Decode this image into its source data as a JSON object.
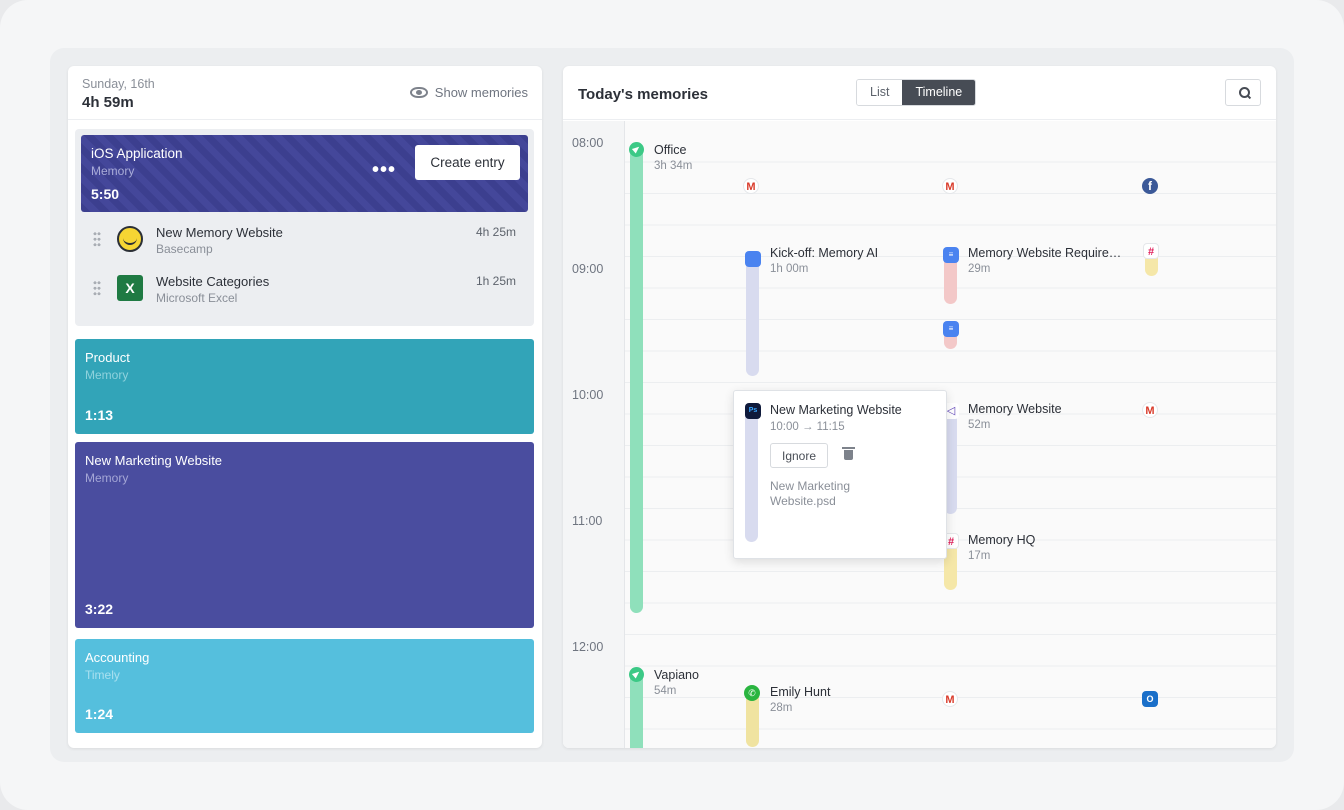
{
  "left": {
    "date": "Sunday, 16th",
    "total": "4h 59m",
    "show_memories": "Show memories",
    "active_project": {
      "title": "iOS Application",
      "subtitle": "Memory",
      "duration": "5:50",
      "more": "•••",
      "create_entry": "Create entry"
    },
    "entries": [
      {
        "name": "New Memory Website",
        "app": "Basecamp",
        "duration": "4h 25m",
        "icon": "basecamp-icon"
      },
      {
        "name": "Website Categories",
        "app": "Microsoft Excel",
        "duration": "1h 25m",
        "icon": "excel-icon",
        "glyph": "X"
      }
    ],
    "projects": [
      {
        "title": "Product",
        "subtitle": "Memory",
        "duration": "1:13",
        "color": "#32a4b8"
      },
      {
        "title": "New Marketing Website",
        "subtitle": "Memory",
        "duration": "3:22",
        "color": "#4a4d9f"
      },
      {
        "title": "Accounting",
        "subtitle": "Timely",
        "duration": "1:24",
        "color": "#55bfdd"
      }
    ]
  },
  "right": {
    "title": "Today's memories",
    "view_toggle": [
      "List",
      "Timeline"
    ],
    "active_view": "Timeline",
    "hours": [
      "08:00",
      "09:00",
      "10:00",
      "11:00",
      "12:00"
    ],
    "locations": [
      {
        "name": "Office",
        "duration": "3h 34m"
      },
      {
        "name": "Vapiano",
        "duration": "54m"
      }
    ],
    "events": [
      {
        "name": "Kick-off: Memory AI",
        "duration": "1h 00m",
        "icon": "google-calendar-icon"
      },
      {
        "name": "Memory Website Require…",
        "duration": "29m",
        "icon": "google-docs-icon"
      },
      {
        "name": "Memory Website",
        "duration": "52m",
        "icon": "visual-studio-icon"
      },
      {
        "name": "Memory HQ",
        "duration": "17m",
        "icon": "slack-icon"
      },
      {
        "name": "Emily Hunt",
        "duration": "28m",
        "icon": "whatsapp-icon"
      }
    ],
    "popup": {
      "title": "New Marketing Website",
      "time": "10:00 → 11:15",
      "ignore": "Ignore",
      "file": "New Marketing Website.psd"
    },
    "glyphs": {
      "gmail": "M",
      "facebook": "f",
      "docs": "≡",
      "slack": "#",
      "photoshop": "Ps",
      "vs": "◁",
      "whatsapp": "✆",
      "outlook": "O"
    },
    "colors": {
      "location": "#8fe0bb",
      "calendar": "#d8dbef",
      "docs": "#f3c8c8",
      "vs": "#d8dbef",
      "slack": "#f5e7a8",
      "whatsapp": "#f0e3a0"
    }
  }
}
